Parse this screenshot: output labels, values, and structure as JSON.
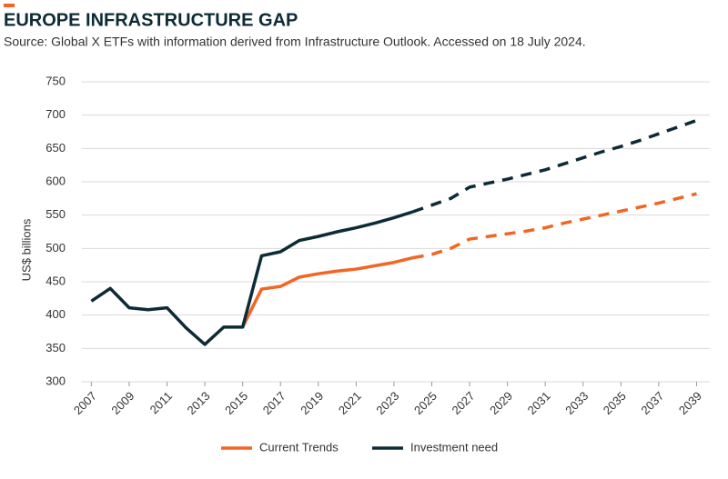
{
  "chart_data": {
    "type": "line",
    "title": "EUROPE INFRASTRUCTURE GAP",
    "subtitle": "Source: Global X ETFs with information derived from Infrastructure Outlook. Accessed on 18 July 2024.",
    "y_label": "US$ billions",
    "x": [
      2007,
      2008,
      2009,
      2010,
      2011,
      2012,
      2013,
      2014,
      2015,
      2016,
      2017,
      2018,
      2019,
      2020,
      2021,
      2022,
      2023,
      2024,
      2025,
      2026,
      2027,
      2028,
      2029,
      2030,
      2031,
      2032,
      2033,
      2034,
      2035,
      2036,
      2037,
      2038,
      2039
    ],
    "series": [
      {
        "name": "Current Trends",
        "color": "#f26522",
        "values": [
          null,
          null,
          null,
          null,
          null,
          null,
          null,
          null,
          382,
          439,
          443,
          457,
          462,
          466,
          469,
          474,
          479,
          486,
          491,
          500,
          514,
          518,
          522,
          526,
          531,
          538,
          544,
          550,
          556,
          562,
          568,
          575,
          582
        ]
      },
      {
        "name": "Investment need",
        "color": "#0d2b36",
        "values": [
          421,
          440,
          411,
          408,
          411,
          381,
          356,
          382,
          382,
          489,
          495,
          512,
          518,
          525,
          531,
          538,
          546,
          555,
          565,
          575,
          592,
          598,
          604,
          611,
          618,
          627,
          636,
          645,
          653,
          662,
          672,
          682,
          692
        ]
      }
    ],
    "dashed_from": 2024,
    "xlim": [
      2006.5,
      2039.7
    ],
    "xticks": [
      2007,
      2009,
      2011,
      2013,
      2015,
      2017,
      2019,
      2021,
      2023,
      2025,
      2027,
      2029,
      2031,
      2033,
      2035,
      2037,
      2039
    ],
    "ylim": [
      300,
      750
    ],
    "yticks": [
      300,
      350,
      400,
      450,
      500,
      550,
      600,
      650,
      700,
      750
    ],
    "grid": true,
    "legend": "bottom"
  }
}
